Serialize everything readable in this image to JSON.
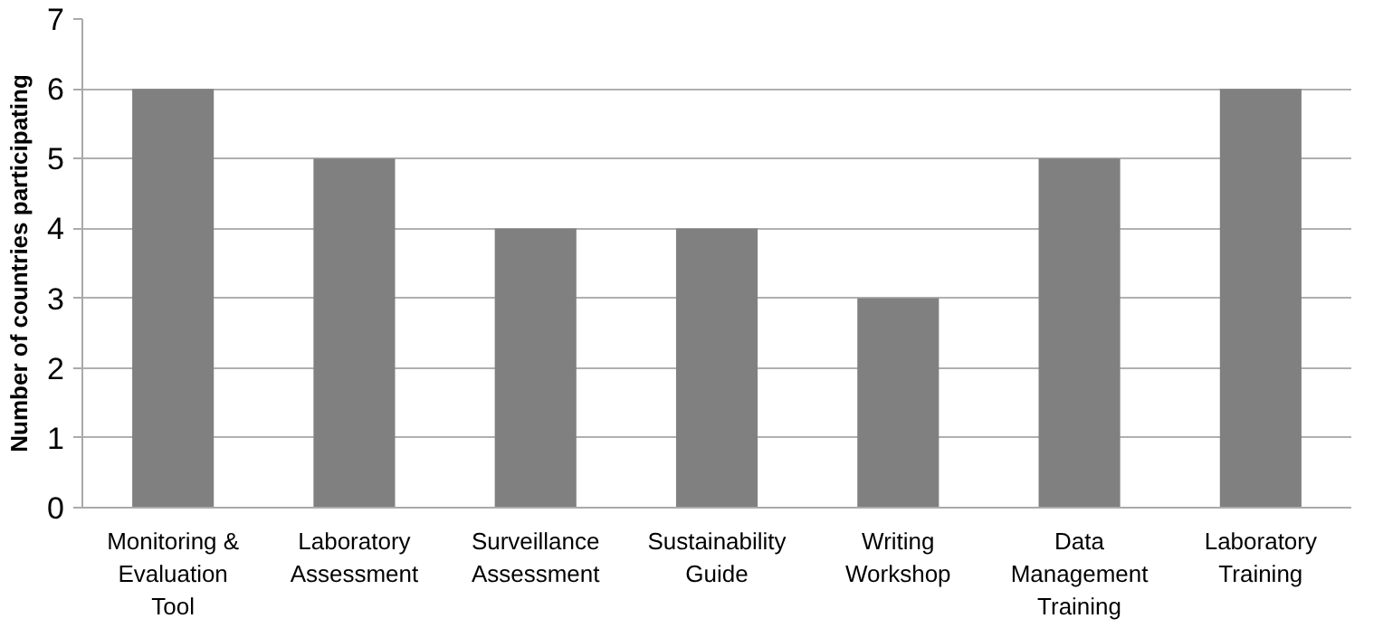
{
  "chart_data": {
    "type": "bar",
    "ylabel": "Number of countries participating",
    "categories": [
      "Monitoring &\nEvaluation\nTool",
      "Laboratory\nAssessment",
      "Surveillance\nAssessment",
      "Sustainability\nGuide",
      "Writing\nWorkshop",
      "Data\nManagement\nTraining",
      "Laboratory\nTraining"
    ],
    "values": [
      6,
      5,
      4,
      4,
      3,
      5,
      6
    ],
    "color": "#808080",
    "ylim": [
      0,
      7
    ],
    "yticks": [
      0,
      1,
      2,
      3,
      4,
      5,
      6,
      7
    ],
    "grid": "y"
  }
}
